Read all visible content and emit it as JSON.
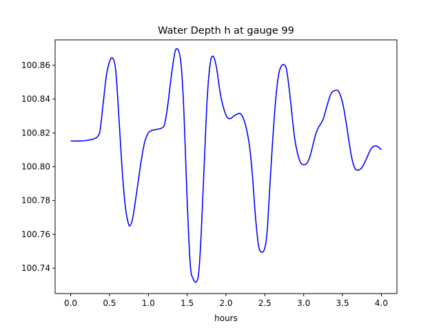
{
  "chart_data": {
    "type": "line",
    "title": "Water Depth h at gauge 99",
    "xlabel": "hours",
    "ylabel": "",
    "xlim": [
      -0.2,
      4.2
    ],
    "ylim": [
      100.725,
      100.875
    ],
    "xticks": [
      0.0,
      0.5,
      1.0,
      1.5,
      2.0,
      2.5,
      3.0,
      3.5,
      4.0
    ],
    "xtick_labels": [
      "0.0",
      "0.5",
      "1.0",
      "1.5",
      "2.0",
      "2.5",
      "3.0",
      "3.5",
      "4.0"
    ],
    "yticks": [
      100.74,
      100.76,
      100.78,
      100.8,
      100.82,
      100.84,
      100.86
    ],
    "ytick_labels": [
      "100.74",
      "100.76",
      "100.78",
      "100.80",
      "100.82",
      "100.84",
      "100.86"
    ],
    "grid": false,
    "legend": "none",
    "series": [
      {
        "color": "#0000ff",
        "x": [
          0.0,
          0.1,
          0.2,
          0.3,
          0.35,
          0.38,
          0.42,
          0.46,
          0.5,
          0.54,
          0.58,
          0.62,
          0.66,
          0.7,
          0.73,
          0.76,
          0.8,
          0.85,
          0.9,
          0.95,
          1.0,
          1.05,
          1.1,
          1.15,
          1.2,
          1.23,
          1.26,
          1.3,
          1.35,
          1.4,
          1.43,
          1.46,
          1.5,
          1.54,
          1.58,
          1.62,
          1.65,
          1.68,
          1.72,
          1.76,
          1.8,
          1.84,
          1.88,
          1.91,
          1.94,
          1.98,
          2.02,
          2.06,
          2.1,
          2.14,
          2.18,
          2.22,
          2.26,
          2.3,
          2.34,
          2.38,
          2.42,
          2.46,
          2.5,
          2.53,
          2.56,
          2.6,
          2.64,
          2.68,
          2.72,
          2.77,
          2.8,
          2.84,
          2.88,
          2.92,
          2.96,
          3.0,
          3.04,
          3.08,
          3.12,
          3.16,
          3.2,
          3.25,
          3.3,
          3.35,
          3.4,
          3.45,
          3.5,
          3.54,
          3.58,
          3.62,
          3.66,
          3.7,
          3.74,
          3.78,
          3.82,
          3.86,
          3.9,
          3.95,
          4.0
        ],
        "y": [
          100.8152,
          100.8152,
          100.8155,
          100.8165,
          100.818,
          100.822,
          100.838,
          100.854,
          100.862,
          100.8643,
          100.857,
          100.83,
          100.8,
          100.778,
          100.769,
          100.765,
          100.77,
          100.785,
          100.801,
          100.814,
          100.82,
          100.8215,
          100.822,
          100.8225,
          100.824,
          100.83,
          100.84,
          100.855,
          100.869,
          100.867,
          100.856,
          100.83,
          100.78,
          100.742,
          100.7335,
          100.732,
          100.738,
          100.76,
          100.802,
          100.842,
          100.862,
          100.865,
          100.858,
          100.848,
          100.84,
          100.833,
          100.829,
          100.8285,
          100.83,
          100.831,
          100.8315,
          100.829,
          100.823,
          100.813,
          100.795,
          100.77,
          100.753,
          100.7495,
          100.752,
          100.762,
          100.785,
          100.815,
          100.84,
          100.855,
          100.86,
          100.859,
          100.851,
          100.835,
          100.818,
          100.808,
          100.8025,
          100.8012,
          100.802,
          100.806,
          100.813,
          100.82,
          100.824,
          100.828,
          100.836,
          100.843,
          100.845,
          100.8445,
          100.838,
          100.828,
          100.816,
          100.805,
          100.799,
          100.798,
          100.799,
          100.802,
          100.806,
          100.81,
          100.812,
          100.812,
          100.81
        ]
      }
    ]
  }
}
